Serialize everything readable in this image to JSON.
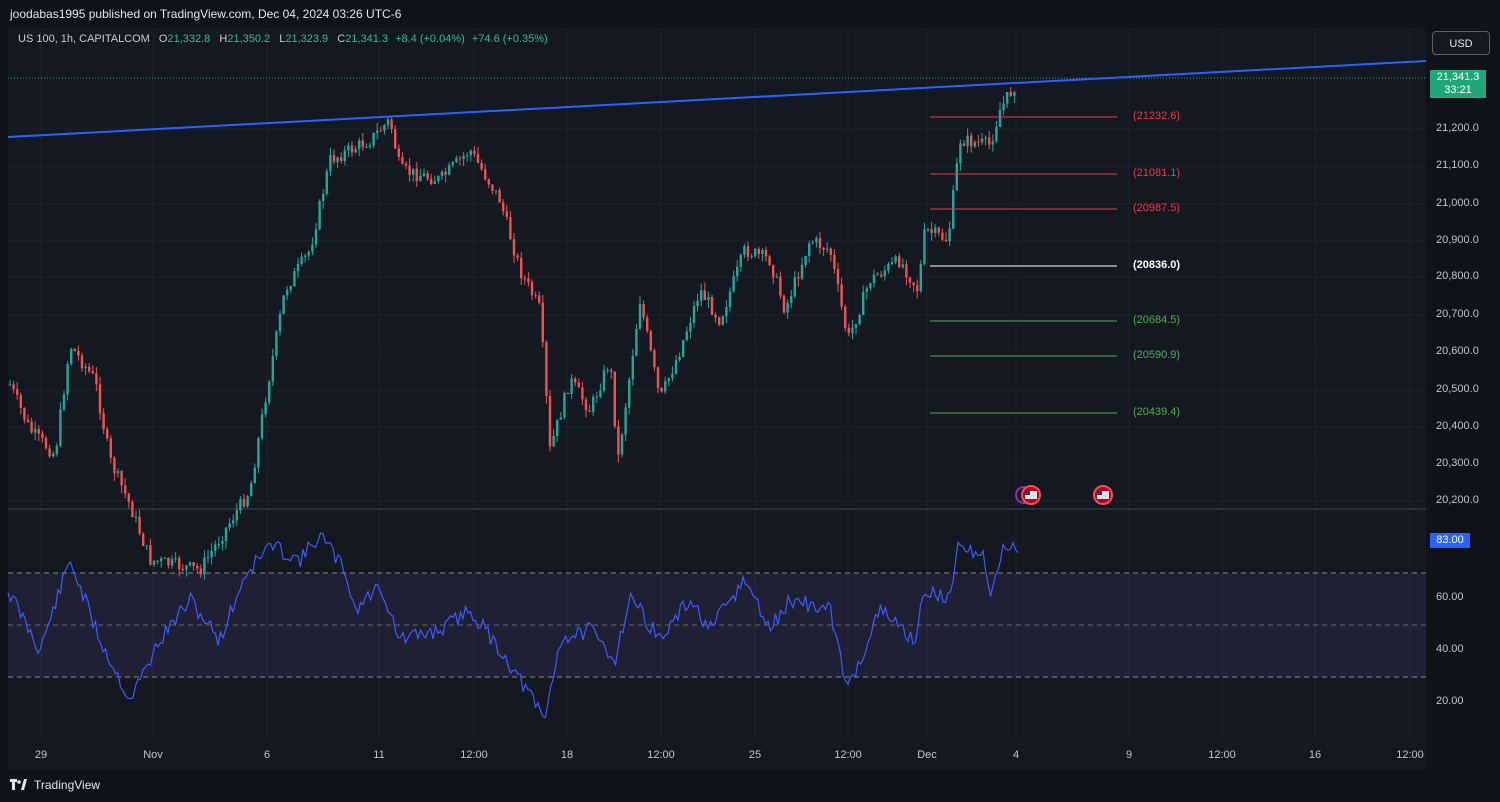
{
  "header": {
    "publisher_text": "joodabas1995 published on TradingView.com, Dec 04, 2024 03:26 UTC-6"
  },
  "legend": {
    "symbol": "US 100, 1h, CAPITALCOM",
    "o_label": "O",
    "o_value": "21,332.8",
    "h_label": "H",
    "h_value": "21,350.2",
    "l_label": "L",
    "l_value": "21,323.9",
    "c_label": "C",
    "c_value": "21,341.3",
    "change": "+8.4 (+0.04%)",
    "change2": "+74.6 (+0.35%)"
  },
  "currency_button": "USD",
  "price_badge": {
    "price": "21,341.3",
    "countdown": "33:21"
  },
  "rsi_badge": "83.00",
  "y_ticks": [
    "21,200.0",
    "21,100.0",
    "21,000.0",
    "20,900.0",
    "20,800.0",
    "20,700.0",
    "20,600.0",
    "20,500.0",
    "20,400.0",
    "20,300.0",
    "20,200.0"
  ],
  "rsi_ticks": [
    "60.00",
    "40.00",
    "20.00"
  ],
  "x_ticks": [
    "29",
    "Nov",
    "6",
    "11",
    "12:00",
    "18",
    "12:00",
    "25",
    "12:00",
    "Dec",
    "4",
    "9",
    "12:00",
    "16",
    "12:00"
  ],
  "levels": [
    {
      "label": "(21232.6)",
      "color": "#f23645"
    },
    {
      "label": "(21081.1)",
      "color": "#f23645"
    },
    {
      "label": "(20987.5)",
      "color": "#f23645"
    },
    {
      "label": "(20836.0)",
      "color": "#ffffff"
    },
    {
      "label": "(20684.5)",
      "color": "#4caf50"
    },
    {
      "label": "(20590.9)",
      "color": "#4caf50"
    },
    {
      "label": "(20439.4)",
      "color": "#4caf50"
    }
  ],
  "footer": {
    "brand": "TradingView"
  },
  "colors": {
    "up": "#26a69a",
    "down": "#ef5350",
    "trendline": "#2962ff",
    "rsi": "#3d5afe"
  }
}
